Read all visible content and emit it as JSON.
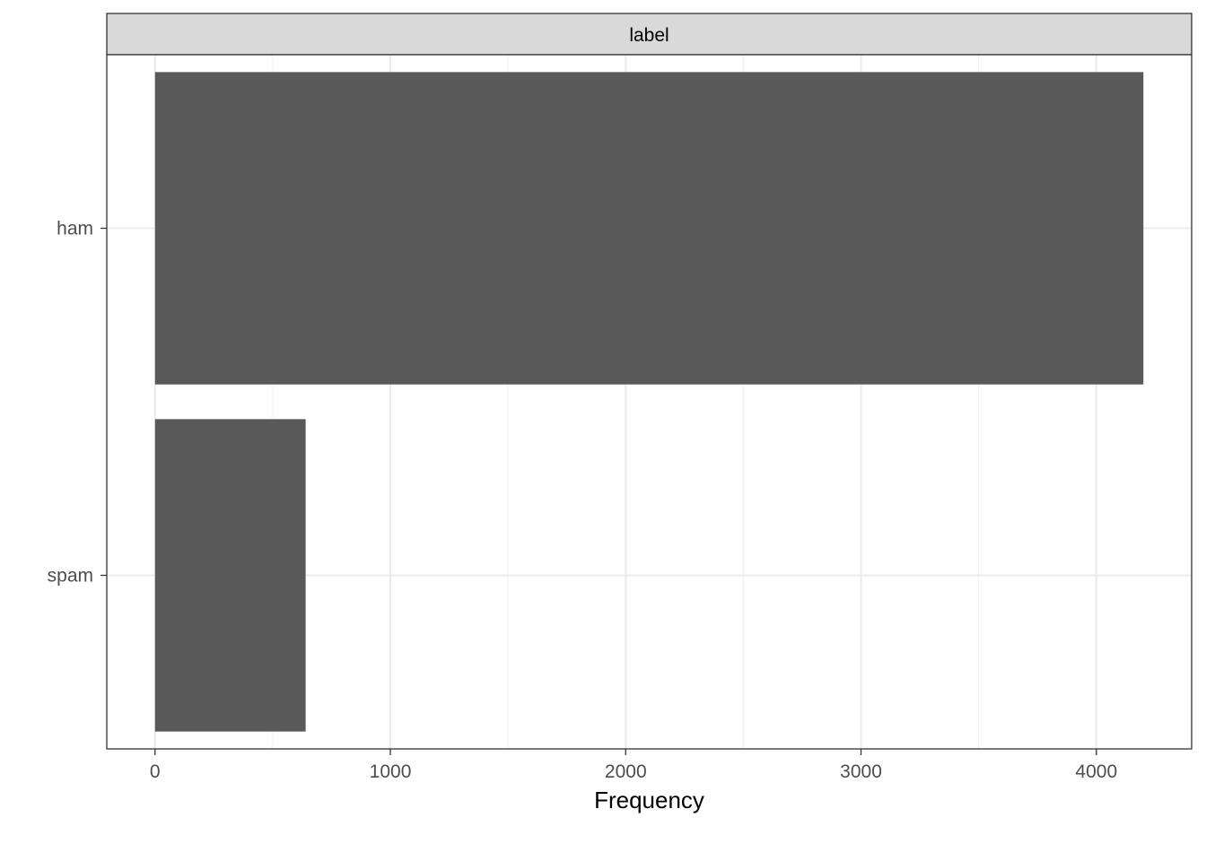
{
  "chart_data": {
    "type": "bar",
    "orientation": "horizontal",
    "facet_label": "label",
    "categories": [
      "ham",
      "spam"
    ],
    "values": [
      4200,
      640
    ],
    "xlabel": "Frequency",
    "ylabel": "",
    "xlim": [
      -205,
      4405
    ],
    "xticks": [
      0,
      1000,
      2000,
      3000,
      4000
    ],
    "xtick_labels": [
      "0",
      "1000",
      "2000",
      "3000",
      "4000"
    ],
    "grid": true,
    "legend": "none",
    "colors": {
      "bar": "#595959",
      "strip_fill": "#d9d9d9",
      "frame": "#333333",
      "grid_major": "#ebebeb",
      "grid_minor": "#f2f2f2",
      "text": "#4d4d4d",
      "title_text": "#000000"
    }
  }
}
